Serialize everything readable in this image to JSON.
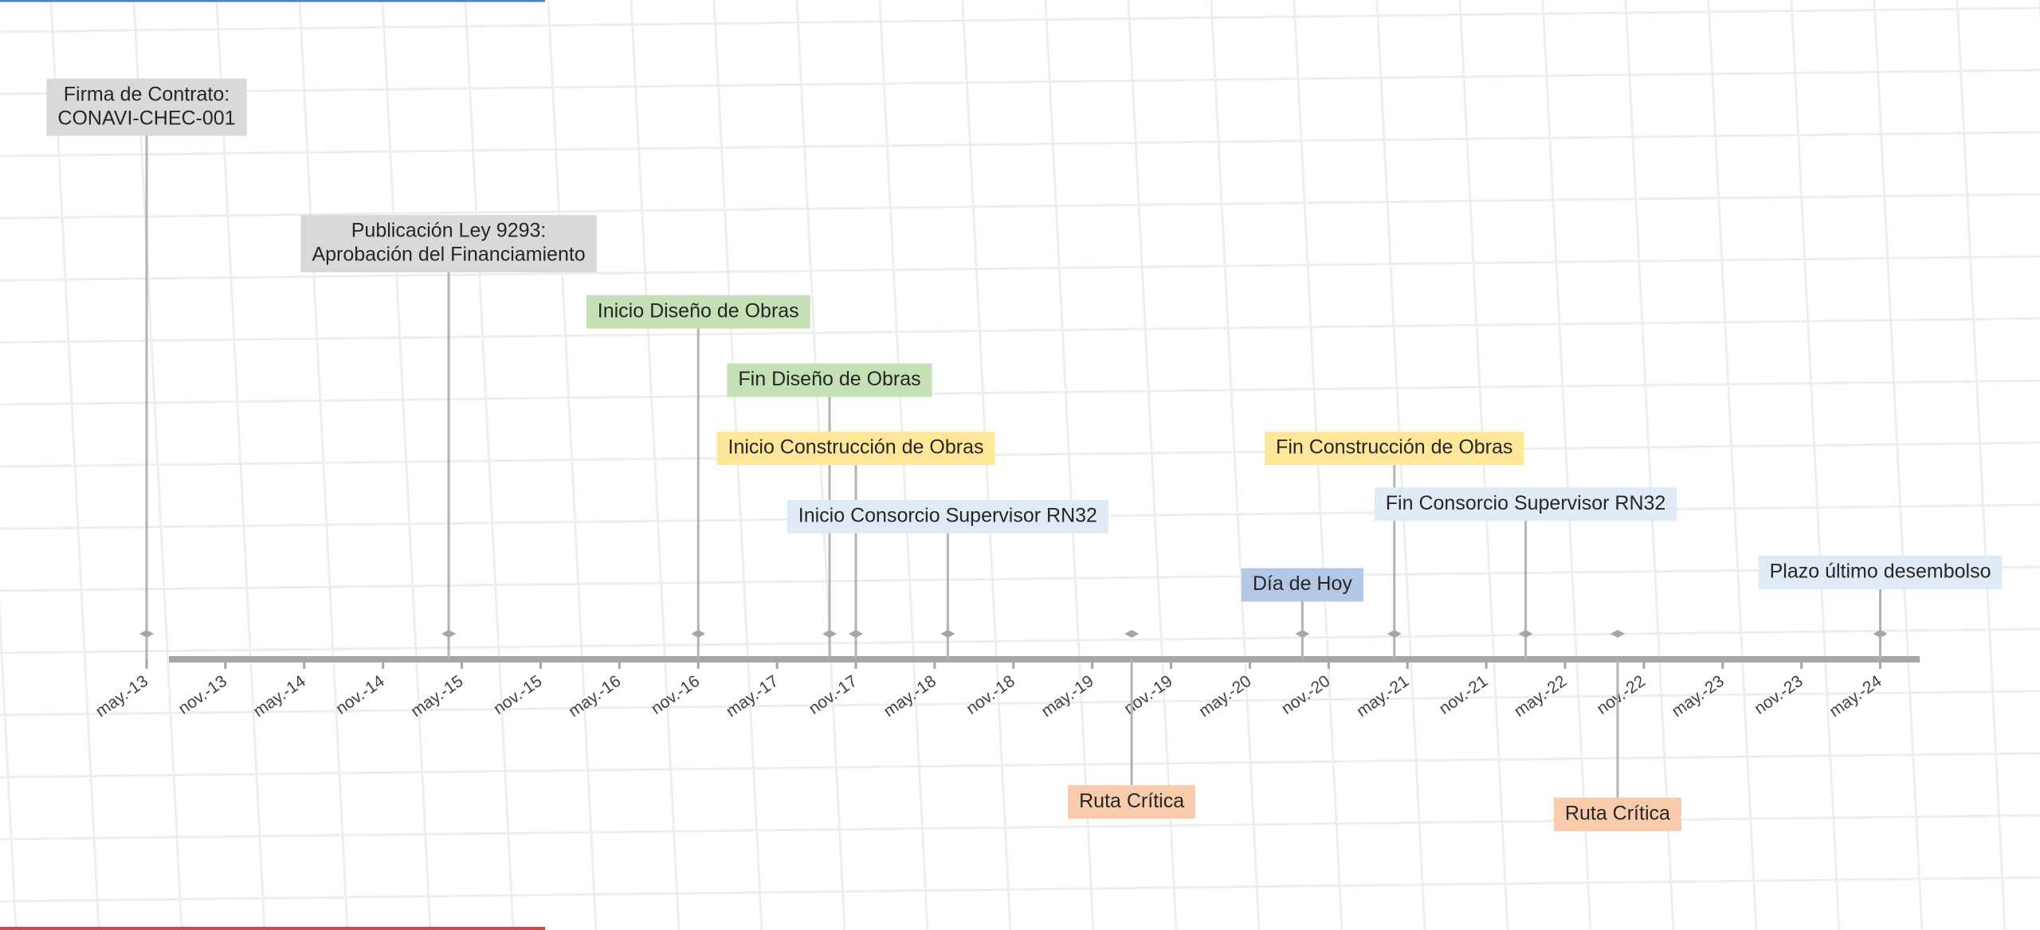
{
  "chart_data": {
    "type": "timeline",
    "xlim": [
      "2013-05",
      "2024-08"
    ],
    "ylim": [
      -0.5,
      1.0
    ],
    "xticks": [
      {
        "value": "2013-05",
        "label": "may.-13"
      },
      {
        "value": "2013-11",
        "label": "nov.-13"
      },
      {
        "value": "2014-05",
        "label": "may.-14"
      },
      {
        "value": "2014-11",
        "label": "nov.-14"
      },
      {
        "value": "2015-05",
        "label": "may.-15"
      },
      {
        "value": "2015-11",
        "label": "nov.-15"
      },
      {
        "value": "2016-05",
        "label": "may.-16"
      },
      {
        "value": "2016-11",
        "label": "nov.-16"
      },
      {
        "value": "2017-05",
        "label": "may.-17"
      },
      {
        "value": "2017-11",
        "label": "nov.-17"
      },
      {
        "value": "2018-05",
        "label": "may.-18"
      },
      {
        "value": "2018-11",
        "label": "nov.-18"
      },
      {
        "value": "2019-05",
        "label": "may.-19"
      },
      {
        "value": "2019-11",
        "label": "nov.-19"
      },
      {
        "value": "2020-05",
        "label": "may.-20"
      },
      {
        "value": "2020-11",
        "label": "nov.-20"
      },
      {
        "value": "2021-05",
        "label": "may.-21"
      },
      {
        "value": "2021-11",
        "label": "nov.-21"
      },
      {
        "value": "2022-05",
        "label": "may.-22"
      },
      {
        "value": "2022-11",
        "label": "nov.-22"
      },
      {
        "value": "2023-05",
        "label": "may.-23"
      },
      {
        "value": "2023-11",
        "label": "nov.-23"
      },
      {
        "value": "2024-05",
        "label": "may.-24"
      }
    ],
    "events": [
      {
        "label": [
          "Firma de Contrato:",
          "CONAVI-CHEC-001"
        ],
        "x": "2013-05",
        "value": 0.89,
        "color": "#d9d9d9"
      },
      {
        "label": [
          "Publicación Ley 9293:",
          "Aprobación del Financiamiento"
        ],
        "x": "2015-04",
        "value": 0.67,
        "color": "#d9d9d9"
      },
      {
        "label": [
          "Inicio Diseño de Obras"
        ],
        "x": "2016-11",
        "value": 0.56,
        "color": "#c5e0b4"
      },
      {
        "label": [
          "Fin Diseño de Obras"
        ],
        "x": "2017-09",
        "value": 0.45,
        "color": "#c5e0b4"
      },
      {
        "label": [
          "Inicio Construcción de Obras"
        ],
        "x": "2017-11",
        "value": 0.34,
        "color": "#ffe699"
      },
      {
        "label": [
          "Inicio Consorcio Supervisor RN32"
        ],
        "x": "2018-06",
        "value": 0.23,
        "color": "#deebf7"
      },
      {
        "label": [
          "Ruta Crítica"
        ],
        "x": "2019-08",
        "value": -0.23,
        "color": "#f8cbad"
      },
      {
        "label": [
          "Día de Hoy"
        ],
        "x": "2020-09",
        "value": 0.12,
        "color": "#b4c7e7"
      },
      {
        "label": [
          "Fin Construcción de Obras"
        ],
        "x": "2021-04",
        "value": 0.34,
        "color": "#ffe699"
      },
      {
        "label": [
          "Fin Consorcio Supervisor RN32"
        ],
        "x": "2022-02",
        "value": 0.25,
        "color": "#deebf7"
      },
      {
        "label": [
          "Ruta Crítica"
        ],
        "x": "2022-09",
        "value": -0.25,
        "color": "#f8cbad"
      },
      {
        "label": [
          "Plazo último desembolso"
        ],
        "x": "2024-05",
        "value": 0.14,
        "color": "#deebf7"
      }
    ]
  }
}
